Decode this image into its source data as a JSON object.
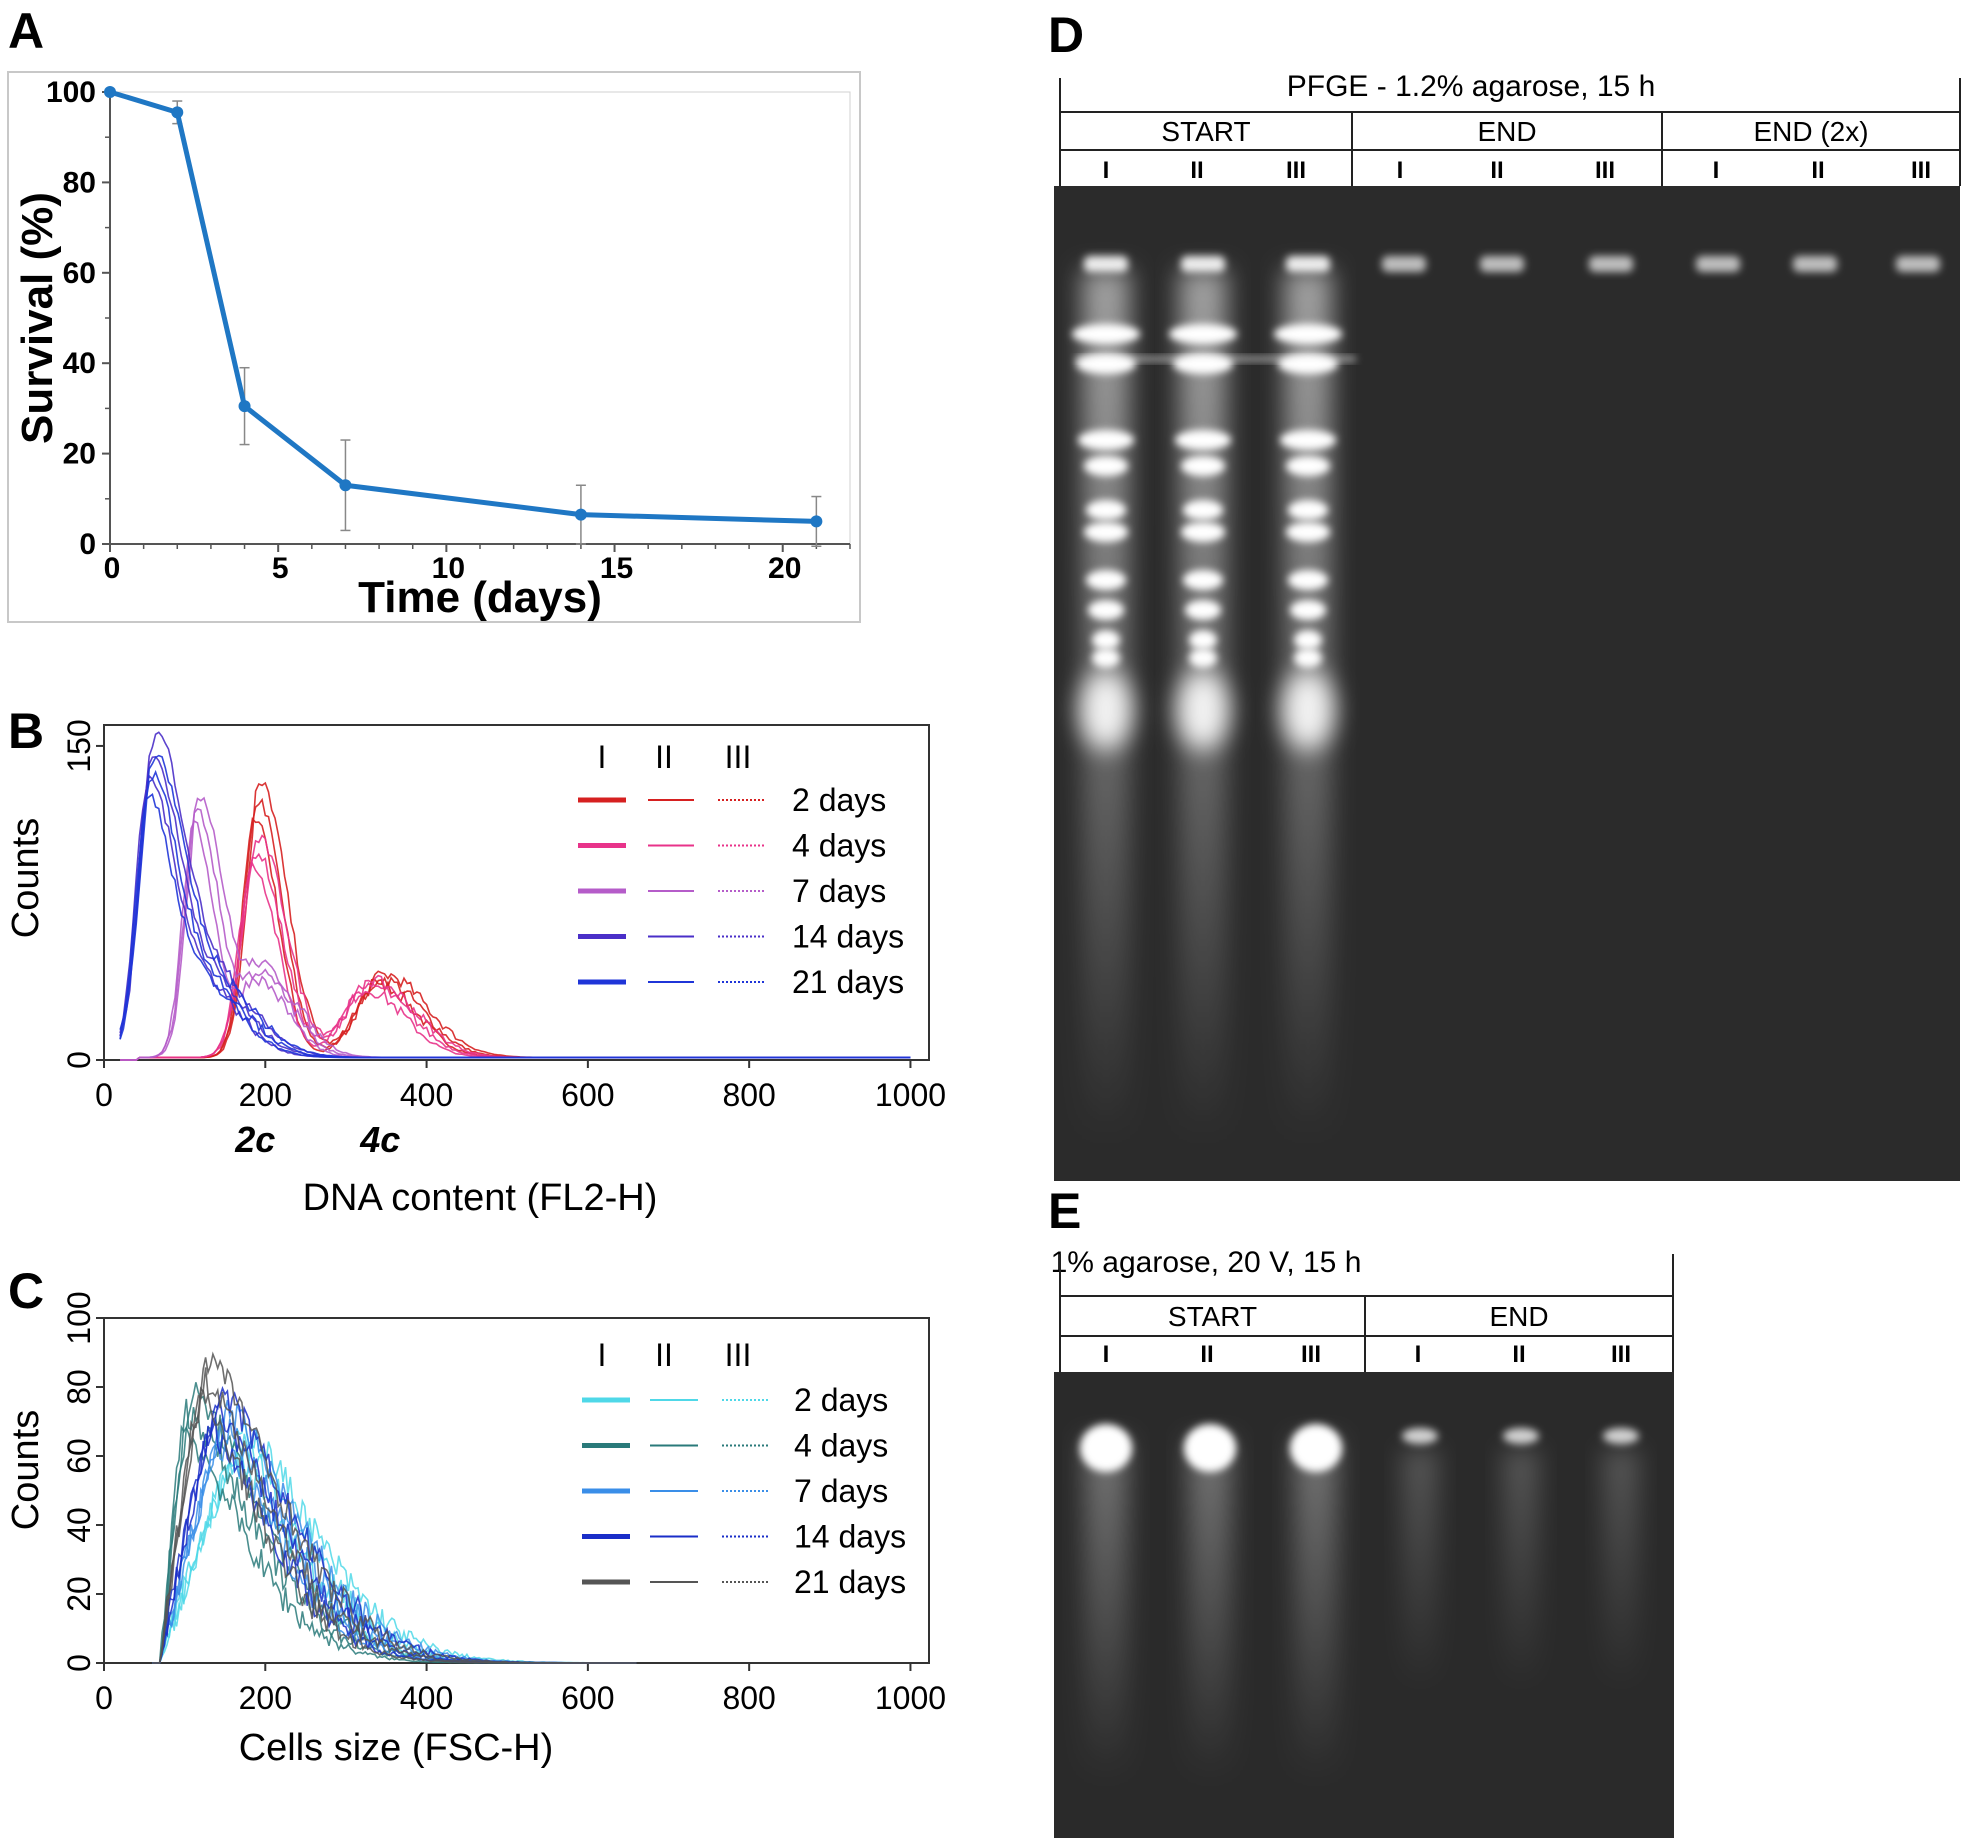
{
  "panels": {
    "A": "A",
    "B": "B",
    "C": "C",
    "D": "D",
    "E": "E"
  },
  "chart_data": [
    {
      "type": "line",
      "panel": "A",
      "xlabel": "Time (days)",
      "ylabel": "Survival (%)",
      "xlim": [
        0,
        22
      ],
      "ylim": [
        0,
        100
      ],
      "xticks": [
        0,
        5,
        10,
        15,
        20
      ],
      "yticks": [
        0,
        20,
        40,
        60,
        80,
        100
      ],
      "color": "#1f77c4",
      "x": [
        0,
        2,
        4,
        7,
        14,
        21
      ],
      "y": [
        100,
        95.5,
        30.5,
        13,
        6.5,
        5
      ],
      "error": [
        0,
        2.5,
        8.5,
        10,
        6.5,
        5.5
      ]
    },
    {
      "type": "line",
      "panel": "B",
      "xlabel": "DNA content (FL2-H)",
      "ylabel": "Counts",
      "xlim": [
        0,
        1023
      ],
      "ylim": [
        0,
        160
      ],
      "xticks": [
        0,
        200,
        400,
        600,
        800,
        1000
      ],
      "yticks": [
        0,
        150
      ],
      "annotations": [
        {
          "text": "2c",
          "x": 200
        },
        {
          "text": "4c",
          "x": 355
        }
      ],
      "legend_columns": [
        "I",
        "II",
        "III"
      ],
      "series": [
        {
          "name": "2 days",
          "color": "#d62020",
          "peaks": [
            [
              188,
              125,
              22
            ],
            [
              340,
              38,
              38
            ]
          ]
        },
        {
          "name": "4 days",
          "color": "#e8338a",
          "peaks": [
            [
              185,
              100,
              24
            ],
            [
              325,
              35,
              38
            ]
          ]
        },
        {
          "name": "7 days",
          "color": "#b55cc9",
          "peaks": [
            [
              112,
              120,
              20
            ],
            [
              190,
              40,
              30
            ]
          ]
        },
        {
          "name": "14 days",
          "color": "#4a2fc8",
          "peaks": [
            [
              55,
              135,
              22
            ],
            [
              110,
              45,
              40
            ]
          ]
        },
        {
          "name": "21 days",
          "color": "#1f35d8",
          "peaks": [
            [
              55,
              130,
              22
            ],
            [
              115,
              40,
              40
            ]
          ]
        }
      ]
    },
    {
      "type": "line",
      "panel": "C",
      "xlabel": "Cells size (FSC-H)",
      "ylabel": "Counts",
      "xlim": [
        0,
        1023
      ],
      "ylim": [
        0,
        100
      ],
      "xticks": [
        0,
        200,
        400,
        600,
        800,
        1000
      ],
      "yticks": [
        0,
        20,
        40,
        60,
        80,
        100
      ],
      "legend_columns": [
        "I",
        "II",
        "III"
      ],
      "series": [
        {
          "name": "2 days",
          "color": "#4fd8e8",
          "peak": [
            160,
            65
          ]
        },
        {
          "name": "4 days",
          "color": "#2a7a7a",
          "peak": [
            95,
            75
          ]
        },
        {
          "name": "7 days",
          "color": "#3a8ee8",
          "peak": [
            140,
            70
          ]
        },
        {
          "name": "14 days",
          "color": "#1a2ec8",
          "peak": [
            130,
            75
          ]
        },
        {
          "name": "21 days",
          "color": "#555555",
          "peak": [
            115,
            85
          ]
        }
      ]
    }
  ],
  "gelD": {
    "title": "PFGE - 1.2% agarose, 15 h",
    "groups": [
      {
        "label": "START",
        "lanes": [
          "I",
          "II",
          "III"
        ]
      },
      {
        "label": "END",
        "lanes": [
          "I",
          "II",
          "III"
        ]
      },
      {
        "label": "END (2x)",
        "lanes": [
          "I",
          "II",
          "III"
        ]
      }
    ]
  },
  "gelE": {
    "title": "1% agarose, 20 V, 15 h",
    "groups": [
      {
        "label": "START",
        "lanes": [
          "I",
          "II",
          "III"
        ]
      },
      {
        "label": "END",
        "lanes": [
          "I",
          "II",
          "III"
        ]
      }
    ]
  },
  "colors": {
    "gel_bg": "#2b2b2b",
    "line_A": "#1f77c4"
  }
}
